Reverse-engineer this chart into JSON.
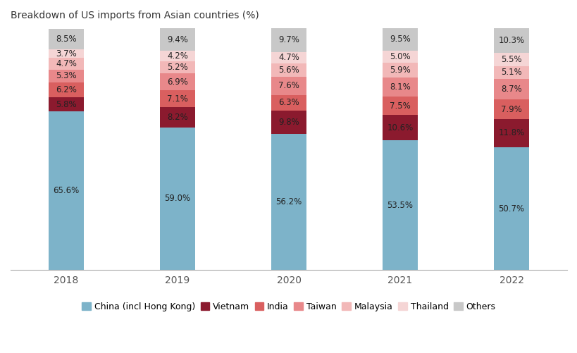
{
  "title": "Breakdown of US imports from Asian countries (%)",
  "years": [
    "2018",
    "2019",
    "2020",
    "2021",
    "2022"
  ],
  "categories": [
    "China (incl Hong Kong)",
    "Vietnam",
    "India",
    "Taiwan",
    "Malaysia",
    "Thailand",
    "Others"
  ],
  "colors": [
    "#7db3c9",
    "#8b1a2e",
    "#d95f5f",
    "#e8888a",
    "#f2b8b8",
    "#f5d5d5",
    "#c8c8c8"
  ],
  "data": {
    "China (incl Hong Kong)": [
      65.6,
      59.0,
      56.2,
      53.5,
      50.7
    ],
    "Vietnam": [
      5.8,
      8.2,
      9.8,
      10.6,
      11.8
    ],
    "India": [
      6.2,
      7.1,
      6.3,
      7.5,
      7.9
    ],
    "Taiwan": [
      5.3,
      6.9,
      7.6,
      8.1,
      8.7
    ],
    "Malaysia": [
      4.7,
      5.2,
      5.6,
      5.9,
      5.1
    ],
    "Thailand": [
      3.7,
      4.2,
      4.7,
      5.0,
      5.5
    ],
    "Others": [
      8.5,
      9.4,
      9.7,
      9.5,
      10.3
    ]
  },
  "background_color": "#ffffff",
  "title_fontsize": 10,
  "label_fontsize": 8.5,
  "legend_fontsize": 9,
  "bar_width": 0.32
}
